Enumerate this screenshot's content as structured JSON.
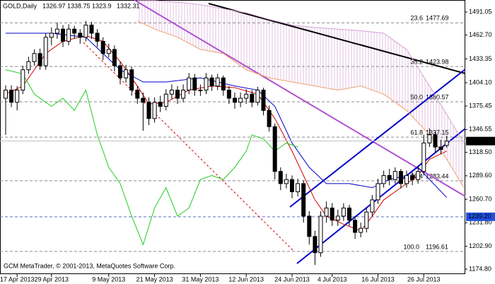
{
  "chart_data": {
    "type": "candlestick",
    "symbol": "GOLD,Daily",
    "copyright": "GCM MetaTrader, © 2001-2013, MetaQuotes Software Corp.",
    "categories": [
      null,
      null,
      "17 Apr 2013",
      null,
      null,
      null,
      null,
      null,
      "29 Apr 2013",
      null,
      null,
      null,
      null,
      null,
      null,
      null,
      null,
      null,
      "9 May 2013",
      null,
      null,
      null,
      null,
      null,
      null,
      null,
      "21 May 2013",
      null,
      null,
      null,
      null,
      null,
      null,
      null,
      "31 May 2013",
      null,
      null,
      null,
      null,
      null,
      null,
      null,
      "12 Jun 2013",
      null,
      null,
      null,
      null,
      null,
      null,
      null,
      "24 Jun 2013",
      null,
      null,
      null,
      null,
      null,
      null,
      "4 Jul 2013",
      null,
      null,
      null,
      null,
      null,
      null,
      null,
      "16 Jul 2013",
      null,
      null,
      null,
      null,
      null,
      null,
      null,
      "26 Jul 2013",
      null,
      null,
      null,
      null
    ],
    "open": [
      1385,
      1395,
      1380,
      1395,
      1420,
      1430,
      1440,
      1425,
      1460,
      1465,
      1470,
      1455,
      1470,
      1465,
      1460,
      1475,
      1465,
      1455,
      1440,
      1445,
      1425,
      1410,
      1420,
      1395,
      1385,
      1380,
      1360,
      1380,
      1375,
      1390,
      1395,
      1385,
      1395,
      1410,
      1395,
      1395,
      1410,
      1400,
      1410,
      1395,
      1385,
      1380,
      1385,
      1390,
      1380,
      1395,
      1370,
      1350,
      1295,
      1280,
      1285,
      1270,
      1280,
      1240,
      1215,
      1195,
      1240,
      1250,
      1235,
      1240,
      1250,
      1235,
      1220,
      1225,
      1245,
      1260,
      1280,
      1290,
      1285,
      1295,
      1280,
      1290,
      1285,
      1295,
      1330,
      1340,
      1325,
      1326.97
    ],
    "high": [
      1401,
      1401,
      1400,
      1425,
      1436,
      1445,
      1446,
      1465,
      1472,
      1478,
      1475,
      1476,
      1474,
      1470,
      1480,
      1479,
      1470,
      1460,
      1452,
      1450,
      1430,
      1426,
      1424,
      1400,
      1392,
      1386,
      1386,
      1388,
      1396,
      1402,
      1400,
      1402,
      1416,
      1415,
      1402,
      1416,
      1414,
      1415,
      1413,
      1400,
      1392,
      1392,
      1396,
      1395,
      1399,
      1398,
      1376,
      1354,
      1300,
      1292,
      1290,
      1286,
      1284,
      1246,
      1222,
      1246,
      1258,
      1256,
      1248,
      1256,
      1254,
      1240,
      1232,
      1250,
      1266,
      1286,
      1296,
      1298,
      1300,
      1298,
      1296,
      1294,
      1302,
      1340,
      1348,
      1344,
      1334,
      1338.75
    ],
    "low": [
      1340,
      1374,
      1370,
      1390,
      1415,
      1425,
      1420,
      1420,
      1450,
      1458,
      1448,
      1450,
      1458,
      1452,
      1455,
      1458,
      1448,
      1432,
      1435,
      1418,
      1402,
      1404,
      1388,
      1378,
      1345,
      1352,
      1355,
      1368,
      1370,
      1384,
      1378,
      1380,
      1390,
      1388,
      1388,
      1390,
      1394,
      1395,
      1388,
      1378,
      1372,
      1374,
      1378,
      1374,
      1376,
      1364,
      1344,
      1285,
      1272,
      1274,
      1262,
      1264,
      1232,
      1205,
      1180,
      1190,
      1232,
      1228,
      1228,
      1234,
      1228,
      1212,
      1214,
      1220,
      1240,
      1255,
      1275,
      1278,
      1280,
      1274,
      1275,
      1278,
      1280,
      1290,
      1325,
      1318,
      1316,
      1323.9
    ],
    "close": [
      1395,
      1380,
      1395,
      1420,
      1430,
      1440,
      1425,
      1460,
      1465,
      1470,
      1455,
      1470,
      1465,
      1460,
      1475,
      1465,
      1455,
      1440,
      1445,
      1425,
      1410,
      1420,
      1395,
      1385,
      1380,
      1360,
      1380,
      1375,
      1390,
      1395,
      1385,
      1395,
      1410,
      1395,
      1395,
      1410,
      1400,
      1410,
      1395,
      1385,
      1380,
      1385,
      1390,
      1380,
      1395,
      1370,
      1350,
      1295,
      1280,
      1285,
      1270,
      1280,
      1240,
      1215,
      1195,
      1240,
      1250,
      1235,
      1240,
      1250,
      1235,
      1220,
      1225,
      1245,
      1260,
      1280,
      1290,
      1285,
      1295,
      1280,
      1290,
      1285,
      1295,
      1330,
      1340,
      1325,
      1322,
      1332.31
    ],
    "lines": [
      {
        "color": "#d00000",
        "x": [
          0,
          3,
          7,
          10,
          14,
          17,
          20,
          23,
          25,
          28,
          32,
          36,
          40,
          44,
          47,
          50,
          52,
          54,
          56,
          59,
          62,
          64,
          66,
          69,
          72,
          74,
          77
        ],
        "values": [
          1390,
          1400,
          1440,
          1455,
          1462,
          1455,
          1430,
          1400,
          1378,
          1380,
          1395,
          1400,
          1398,
          1390,
          1360,
          1320,
          1290,
          1260,
          1240,
          1230,
          1222,
          1240,
          1260,
          1275,
          1290,
          1310,
          1320
        ]
      },
      {
        "color": "#0000c8",
        "x": [
          0,
          8,
          14,
          17,
          20,
          24,
          28,
          34,
          40,
          44,
          47,
          50,
          53,
          56,
          60,
          64,
          67,
          70,
          72,
          74,
          77
        ],
        "values": [
          1465,
          1465,
          1460,
          1440,
          1420,
          1405,
          1405,
          1410,
          1400,
          1395,
          1375,
          1330,
          1300,
          1280,
          1280,
          1275,
          1285,
          1290,
          1300,
          1285,
          1263
        ]
      },
      {
        "color": "#22cc22",
        "x": [
          0,
          3,
          5,
          8,
          10,
          12,
          14,
          16,
          18,
          20,
          22,
          24,
          26,
          28,
          30,
          32,
          34,
          36,
          38,
          40,
          42,
          43,
          45,
          47,
          49,
          51
        ],
        "values": [
          1420,
          1415,
          1390,
          1375,
          1385,
          1370,
          1395,
          1340,
          1300,
          1280,
          1240,
          1205,
          1250,
          1275,
          1240,
          1250,
          1285,
          1290,
          1285,
          1300,
          1320,
          1340,
          1335,
          1320,
          1330,
          1325
        ]
      },
      {
        "color": "#f0a070",
        "x": [
          23,
          26,
          30,
          34,
          38,
          42,
          46,
          50,
          54,
          58,
          62,
          66,
          70,
          74,
          77,
          80
        ],
        "values": [
          1480,
          1470,
          1460,
          1445,
          1440,
          1420,
          1410,
          1405,
          1400,
          1395,
          1400,
          1390,
          1370,
          1340,
          1310,
          1275
        ]
      },
      {
        "color": "#d8a0d8",
        "x": [
          23,
          26,
          30,
          34,
          38,
          42,
          46,
          50,
          54,
          58,
          62,
          66,
          70,
          74,
          77,
          80
        ],
        "values": [
          1505,
          1505,
          1503,
          1500,
          1495,
          1490,
          1482,
          1475,
          1472,
          1470,
          1468,
          1465,
          1445,
          1400,
          1365,
          1330
        ]
      }
    ],
    "fibo": [
      {
        "ratio": "23.6",
        "price": 1477.69
      },
      {
        "ratio": "38.2",
        "price": 1423.98
      },
      {
        "ratio": "50.0",
        "price": 1380.57
      },
      {
        "ratio": "61.8",
        "price": 1337.15
      },
      {
        "ratio": "76.4",
        "price": 1283.44
      },
      {
        "ratio": "100.0",
        "price": 1196.61
      }
    ],
    "level": {
      "value": 1239.2,
      "label": "1239.20"
    },
    "ylim": [
      1168.7,
      1505.8
    ],
    "yticks": [
      1491.05,
      {
        "value": 1462.7,
        "label": "1462.70"
      },
      1433.35,
      {
        "value": 1404.1,
        "label": "1404.10"
      },
      1375.45,
      1346.55,
      {
        "value": 1318.5,
        "label": "1318.50"
      },
      {
        "value": 1289.6,
        "label": "1289.60"
      },
      {
        "value": 1260.7,
        "label": "1260.70"
      },
      {
        "value": 1231.8,
        "label": "1231.80"
      },
      {
        "value": 1202.9,
        "label": "1202.90"
      },
      {
        "value": 1174.8,
        "label": "1174.80"
      }
    ]
  }
}
